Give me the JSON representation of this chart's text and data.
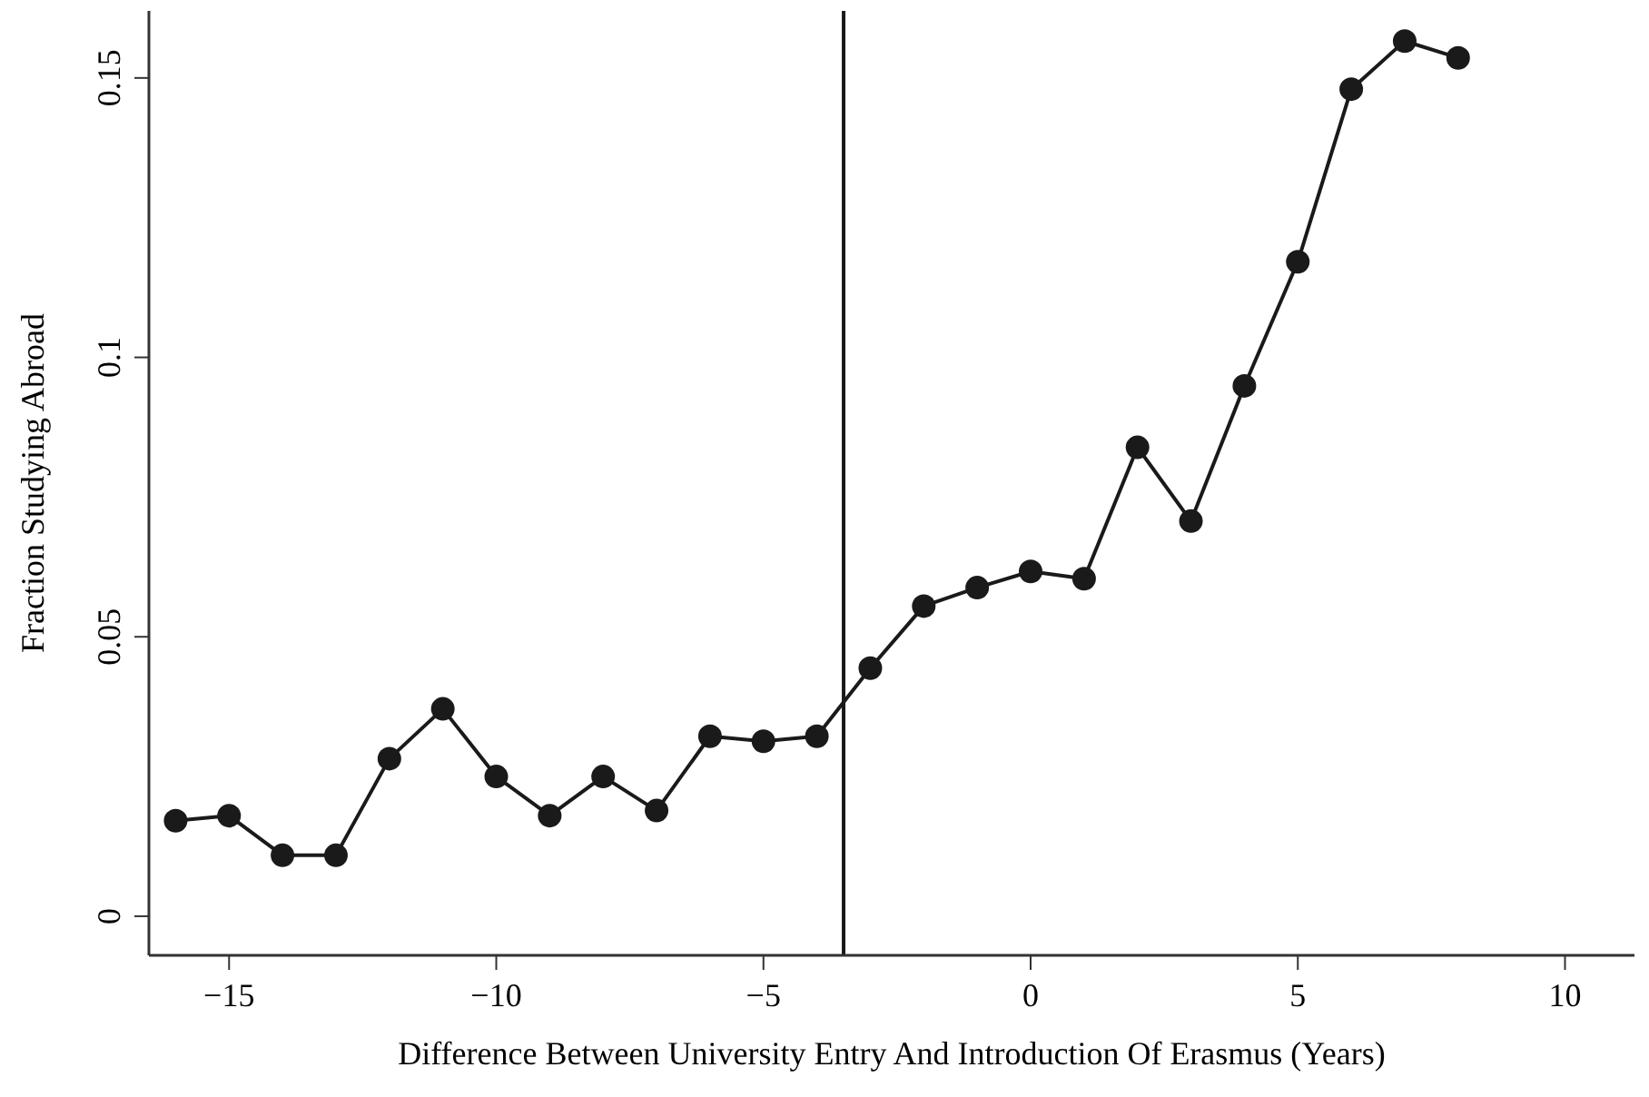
{
  "chart_data": {
    "type": "line",
    "xlabel": "Difference Between University Entry And Introduction Of Erasmus (Years)",
    "ylabel": "Fraction Studying Abroad",
    "x": [
      -16,
      -15,
      -14,
      -13,
      -12,
      -11,
      -10,
      -9,
      -8,
      -7,
      -6,
      -5,
      -4,
      -3,
      -2,
      -1,
      0,
      1,
      2,
      3,
      4,
      5,
      6,
      7,
      8
    ],
    "series": [
      {
        "color": "#1a1a1a",
        "values": [
          0.0171,
          0.018,
          0.0109,
          0.0109,
          0.0282,
          0.0371,
          0.025,
          0.018,
          0.025,
          0.0189,
          0.0322,
          0.0313,
          0.0322,
          0.0444,
          0.0555,
          0.0588,
          0.0617,
          0.0604,
          0.0839,
          0.0707,
          0.0949,
          0.1171,
          0.148,
          0.1566,
          0.1536
        ]
      }
    ],
    "xlim": [
      -16.5,
      11.3
    ],
    "xticks": [
      -15,
      -10,
      -5,
      0,
      5,
      10
    ],
    "ylim": [
      -0.007,
      0.162
    ],
    "yticks": [
      0,
      0.05,
      0.1,
      0.15
    ],
    "ref_lines": [
      {
        "axis": "x",
        "value": -3.5,
        "color": "#1a1a1a"
      }
    ],
    "marker": "circle",
    "line_style": "solid",
    "grid": false
  }
}
